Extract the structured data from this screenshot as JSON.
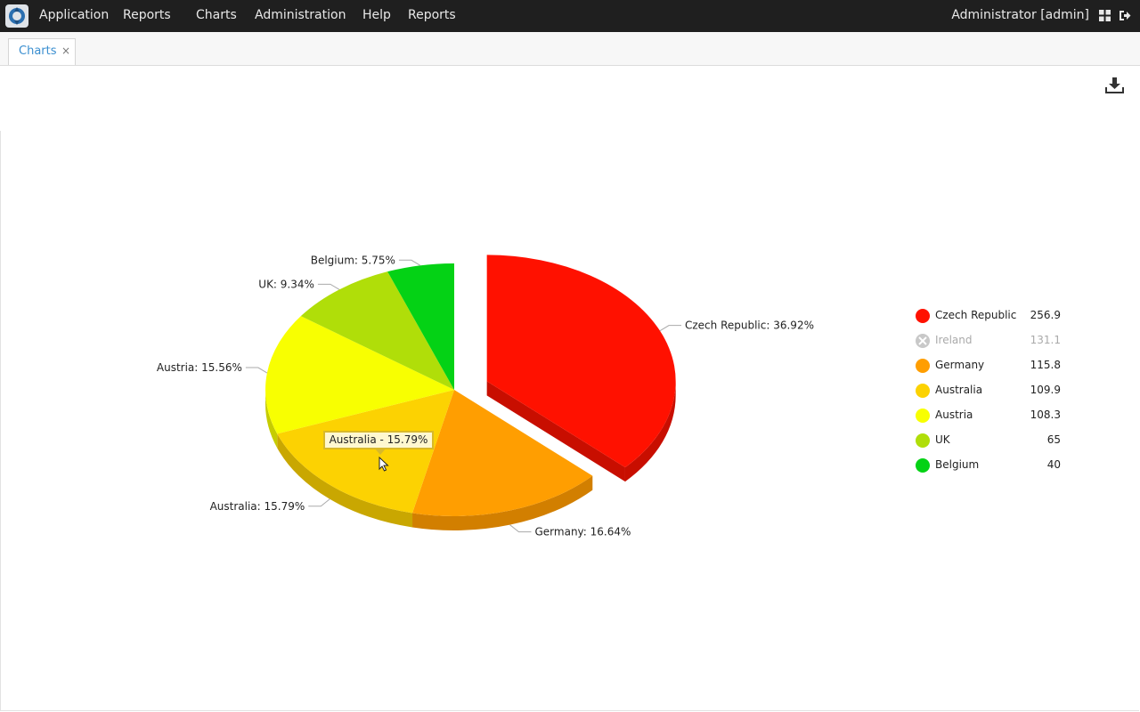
{
  "menu": {
    "items": [
      "Application",
      "Reports",
      "Charts",
      "Administration",
      "Help",
      "Reports"
    ],
    "user": "Administrator [admin]",
    "icons": [
      "app-logo-icon",
      "grid-icon",
      "logout-icon"
    ]
  },
  "tabs": [
    {
      "label": "Charts",
      "close": "×"
    }
  ],
  "toolbar": {
    "download_icon": "download-icon"
  },
  "chart_data": {
    "type": "pie",
    "slices": [
      {
        "name": "Czech Republic",
        "value": 256.9,
        "percent": 36.92,
        "label": "Czech Republic: 36.92%",
        "color": "#ff1100",
        "shade": "#c80e00"
      },
      {
        "name": "Germany",
        "value": 115.8,
        "percent": 16.64,
        "label": "Germany: 16.64%",
        "color": "#ff9e01",
        "shade": "#d27f00"
      },
      {
        "name": "Australia",
        "value": 109.9,
        "percent": 15.79,
        "label": "Australia: 15.79%",
        "color": "#fcd202",
        "shade": "#c9a701"
      },
      {
        "name": "Austria",
        "value": 108.3,
        "percent": 15.56,
        "label": "Austria: 15.56%",
        "color": "#f8ff01",
        "shade": "#c6cc00"
      },
      {
        "name": "UK",
        "value": 65,
        "percent": 9.34,
        "label": "UK: 9.34%",
        "color": "#b0de09",
        "shade": "#8db107"
      },
      {
        "name": "Belgium",
        "value": 40,
        "percent": 5.75,
        "label": "Belgium: 5.75%",
        "color": "#04d215",
        "shade": "#03a811"
      }
    ],
    "legend": [
      {
        "name": "Czech Republic",
        "value": "256.9",
        "color": "#ff1100",
        "enabled": true
      },
      {
        "name": "Ireland",
        "value": "131.1",
        "color": "#c8c8c8",
        "enabled": false
      },
      {
        "name": "Germany",
        "value": "115.8",
        "color": "#ff9e01",
        "enabled": true
      },
      {
        "name": "Australia",
        "value": "109.9",
        "color": "#fcd202",
        "enabled": true
      },
      {
        "name": "Austria",
        "value": "108.3",
        "color": "#f8ff01",
        "enabled": true
      },
      {
        "name": "UK",
        "value": "65",
        "color": "#b0de09",
        "enabled": true
      },
      {
        "name": "Belgium",
        "value": "40",
        "color": "#04d215",
        "enabled": true
      }
    ],
    "legend_position": "right",
    "pulled_out": "Czech Republic",
    "tooltip": "Australia - 15.79%"
  }
}
